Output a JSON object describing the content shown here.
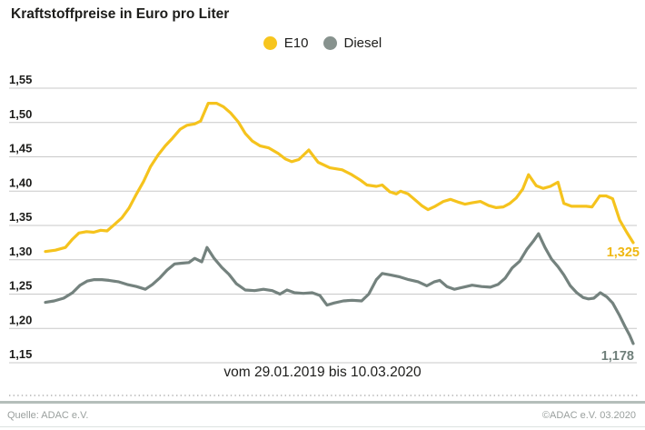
{
  "title": "Kraftstoffpreise in Euro pro Liter",
  "legend": {
    "items": [
      {
        "label": "E10",
        "color": "#f7c51e"
      },
      {
        "label": "Diesel",
        "color": "#87928e"
      }
    ]
  },
  "footer": {
    "source": "Quelle: ADAC e.V.",
    "copyright": "©ADAC e.V.  03.2020"
  },
  "chart_data": {
    "type": "line",
    "title": "Kraftstoffpreise in Euro pro Liter",
    "xlabel": "vom 29.01.2019 bis 10.03.2020",
    "ylabel": "Euro pro Liter",
    "ylim": [
      1.15,
      1.55
    ],
    "ytick_step": 0.05,
    "ytick_labels": [
      "1,55",
      "1,50",
      "1,45",
      "1,40",
      "1,35",
      "1,30",
      "1,25",
      "1,20",
      "1,15"
    ],
    "grid": true,
    "legend_position": "top-center",
    "x_range": {
      "start": "29.01.2019",
      "end": "10.03.2020"
    },
    "end_labels": [
      {
        "series": "E10",
        "value": "1,325",
        "color": "#efb712"
      },
      {
        "series": "Diesel",
        "value": "1,178",
        "color": "#6f7f7a"
      }
    ],
    "series": [
      {
        "name": "E10",
        "color": "#f5c31d",
        "points": [
          [
            0.0,
            1.312
          ],
          [
            0.017,
            1.314
          ],
          [
            0.034,
            1.318
          ],
          [
            0.046,
            1.33
          ],
          [
            0.057,
            1.339
          ],
          [
            0.07,
            1.341
          ],
          [
            0.082,
            1.34
          ],
          [
            0.094,
            1.343
          ],
          [
            0.105,
            1.342
          ],
          [
            0.117,
            1.351
          ],
          [
            0.13,
            1.361
          ],
          [
            0.142,
            1.375
          ],
          [
            0.155,
            1.396
          ],
          [
            0.167,
            1.414
          ],
          [
            0.179,
            1.436
          ],
          [
            0.192,
            1.453
          ],
          [
            0.204,
            1.466
          ],
          [
            0.216,
            1.477
          ],
          [
            0.229,
            1.49
          ],
          [
            0.241,
            1.496
          ],
          [
            0.254,
            1.498
          ],
          [
            0.264,
            1.502
          ],
          [
            0.277,
            1.528
          ],
          [
            0.291,
            1.528
          ],
          [
            0.303,
            1.523
          ],
          [
            0.315,
            1.514
          ],
          [
            0.328,
            1.501
          ],
          [
            0.34,
            1.484
          ],
          [
            0.352,
            1.473
          ],
          [
            0.365,
            1.466
          ],
          [
            0.38,
            1.463
          ],
          [
            0.396,
            1.455
          ],
          [
            0.408,
            1.447
          ],
          [
            0.419,
            1.443
          ],
          [
            0.431,
            1.446
          ],
          [
            0.448,
            1.46
          ],
          [
            0.464,
            1.442
          ],
          [
            0.484,
            1.434
          ],
          [
            0.505,
            1.431
          ],
          [
            0.521,
            1.424
          ],
          [
            0.536,
            1.416
          ],
          [
            0.547,
            1.409
          ],
          [
            0.563,
            1.407
          ],
          [
            0.573,
            1.409
          ],
          [
            0.586,
            1.399
          ],
          [
            0.597,
            1.396
          ],
          [
            0.604,
            1.4
          ],
          [
            0.617,
            1.396
          ],
          [
            0.628,
            1.388
          ],
          [
            0.64,
            1.379
          ],
          [
            0.651,
            1.373
          ],
          [
            0.663,
            1.378
          ],
          [
            0.677,
            1.385
          ],
          [
            0.689,
            1.388
          ],
          [
            0.702,
            1.384
          ],
          [
            0.714,
            1.381
          ],
          [
            0.726,
            1.383
          ],
          [
            0.74,
            1.385
          ],
          [
            0.754,
            1.379
          ],
          [
            0.767,
            1.376
          ],
          [
            0.779,
            1.377
          ],
          [
            0.79,
            1.382
          ],
          [
            0.801,
            1.39
          ],
          [
            0.812,
            1.403
          ],
          [
            0.822,
            1.424
          ],
          [
            0.835,
            1.408
          ],
          [
            0.847,
            1.404
          ],
          [
            0.859,
            1.407
          ],
          [
            0.872,
            1.413
          ],
          [
            0.882,
            1.382
          ],
          [
            0.895,
            1.378
          ],
          [
            0.907,
            1.378
          ],
          [
            0.92,
            1.378
          ],
          [
            0.93,
            1.377
          ],
          [
            0.943,
            1.393
          ],
          [
            0.954,
            1.393
          ],
          [
            0.965,
            1.389
          ],
          [
            0.977,
            1.358
          ],
          [
            0.989,
            1.34
          ],
          [
            1.0,
            1.325
          ]
        ]
      },
      {
        "name": "Diesel",
        "color": "#74827e",
        "points": [
          [
            0.0,
            1.238
          ],
          [
            0.015,
            1.24
          ],
          [
            0.031,
            1.244
          ],
          [
            0.046,
            1.252
          ],
          [
            0.059,
            1.263
          ],
          [
            0.071,
            1.269
          ],
          [
            0.083,
            1.271
          ],
          [
            0.096,
            1.271
          ],
          [
            0.108,
            1.27
          ],
          [
            0.124,
            1.268
          ],
          [
            0.139,
            1.264
          ],
          [
            0.155,
            1.261
          ],
          [
            0.17,
            1.257
          ],
          [
            0.182,
            1.264
          ],
          [
            0.195,
            1.274
          ],
          [
            0.207,
            1.285
          ],
          [
            0.22,
            1.294
          ],
          [
            0.232,
            1.295
          ],
          [
            0.244,
            1.296
          ],
          [
            0.254,
            1.302
          ],
          [
            0.266,
            1.297
          ],
          [
            0.275,
            1.318
          ],
          [
            0.287,
            1.302
          ],
          [
            0.3,
            1.289
          ],
          [
            0.312,
            1.279
          ],
          [
            0.325,
            1.265
          ],
          [
            0.34,
            1.256
          ],
          [
            0.356,
            1.255
          ],
          [
            0.371,
            1.257
          ],
          [
            0.386,
            1.255
          ],
          [
            0.399,
            1.25
          ],
          [
            0.411,
            1.256
          ],
          [
            0.424,
            1.252
          ],
          [
            0.439,
            1.251
          ],
          [
            0.454,
            1.252
          ],
          [
            0.467,
            1.248
          ],
          [
            0.479,
            1.234
          ],
          [
            0.491,
            1.237
          ],
          [
            0.507,
            1.24
          ],
          [
            0.522,
            1.241
          ],
          [
            0.538,
            1.24
          ],
          [
            0.55,
            1.25
          ],
          [
            0.563,
            1.271
          ],
          [
            0.573,
            1.28
          ],
          [
            0.587,
            1.278
          ],
          [
            0.603,
            1.275
          ],
          [
            0.618,
            1.271
          ],
          [
            0.634,
            1.268
          ],
          [
            0.649,
            1.262
          ],
          [
            0.662,
            1.268
          ],
          [
            0.671,
            1.27
          ],
          [
            0.683,
            1.261
          ],
          [
            0.696,
            1.257
          ],
          [
            0.711,
            1.26
          ],
          [
            0.726,
            1.263
          ],
          [
            0.742,
            1.261
          ],
          [
            0.757,
            1.26
          ],
          [
            0.77,
            1.264
          ],
          [
            0.782,
            1.273
          ],
          [
            0.794,
            1.288
          ],
          [
            0.807,
            1.298
          ],
          [
            0.819,
            1.315
          ],
          [
            0.83,
            1.327
          ],
          [
            0.839,
            1.338
          ],
          [
            0.85,
            1.318
          ],
          [
            0.861,
            1.301
          ],
          [
            0.872,
            1.29
          ],
          [
            0.882,
            1.278
          ],
          [
            0.893,
            1.262
          ],
          [
            0.904,
            1.252
          ],
          [
            0.915,
            1.245
          ],
          [
            0.924,
            1.243
          ],
          [
            0.933,
            1.244
          ],
          [
            0.944,
            1.252
          ],
          [
            0.955,
            1.246
          ],
          [
            0.965,
            1.237
          ],
          [
            0.976,
            1.22
          ],
          [
            0.986,
            1.203
          ],
          [
            0.994,
            1.19
          ],
          [
            1.0,
            1.178
          ]
        ]
      }
    ]
  }
}
